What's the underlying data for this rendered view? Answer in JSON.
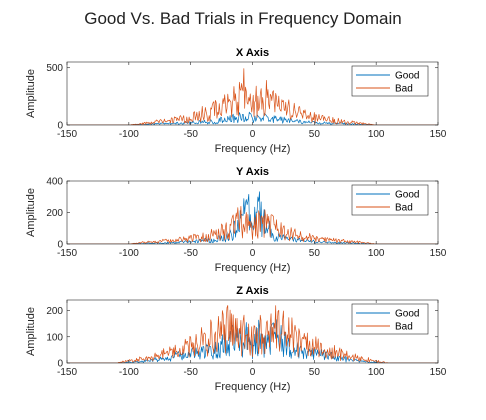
{
  "figure": {
    "title": "Good Vs. Bad Trials in Frequency Domain"
  },
  "colors": {
    "good": "#0072BD",
    "bad": "#D95319",
    "axis": "#262626"
  },
  "chart_data": [
    {
      "type": "line",
      "title": "X Axis",
      "xlabel": "Frequency (Hz)",
      "ylabel": "Amplitude",
      "xlim": [
        -150,
        150
      ],
      "ylim": [
        0,
        550
      ],
      "xticks": [
        -150,
        -100,
        -50,
        0,
        50,
        100,
        150
      ],
      "yticks": [
        0,
        500
      ],
      "grid": false,
      "legend_position": "top-right",
      "series": [
        {
          "name": "Good",
          "color": "#0072BD",
          "x": [
            -150,
            -100,
            -90,
            -80,
            -70,
            -60,
            -50,
            -40,
            -30,
            -20,
            -15,
            -10,
            -5,
            -2,
            0,
            2,
            5,
            10,
            15,
            20,
            30,
            40,
            50,
            60,
            70,
            80,
            90,
            100,
            150
          ],
          "y": [
            0,
            0,
            10,
            15,
            22,
            28,
            35,
            45,
            60,
            85,
            100,
            115,
            95,
            120,
            70,
            120,
            95,
            115,
            100,
            85,
            60,
            45,
            35,
            28,
            22,
            15,
            10,
            0,
            0
          ]
        },
        {
          "name": "Bad",
          "color": "#D95319",
          "x": [
            -150,
            -100,
            -90,
            -80,
            -70,
            -60,
            -50,
            -40,
            -30,
            -20,
            -15,
            -10,
            -7,
            -5,
            -3,
            0,
            3,
            5,
            7,
            10,
            15,
            20,
            30,
            40,
            50,
            60,
            70,
            80,
            90,
            100,
            150
          ],
          "y": [
            0,
            0,
            20,
            40,
            60,
            80,
            110,
            170,
            220,
            280,
            350,
            420,
            500,
            420,
            380,
            250,
            380,
            420,
            500,
            420,
            350,
            280,
            220,
            170,
            110,
            80,
            60,
            40,
            20,
            0,
            0
          ]
        }
      ]
    },
    {
      "type": "line",
      "title": "Y Axis",
      "xlabel": "Frequency (Hz)",
      "ylabel": "Amplitude",
      "xlim": [
        -150,
        150
      ],
      "ylim": [
        0,
        400
      ],
      "xticks": [
        -150,
        -100,
        -50,
        0,
        50,
        100,
        150
      ],
      "yticks": [
        0,
        200,
        400
      ],
      "grid": false,
      "legend_position": "top-right",
      "series": [
        {
          "name": "Good",
          "color": "#0072BD",
          "x": [
            -150,
            -100,
            -90,
            -80,
            -70,
            -60,
            -50,
            -40,
            -30,
            -20,
            -15,
            -10,
            -7,
            -5,
            -3,
            0,
            3,
            5,
            7,
            10,
            15,
            20,
            30,
            40,
            50,
            60,
            70,
            80,
            90,
            100,
            150
          ],
          "y": [
            0,
            0,
            5,
            10,
            12,
            18,
            25,
            35,
            50,
            80,
            150,
            220,
            300,
            380,
            320,
            150,
            320,
            380,
            300,
            220,
            150,
            80,
            50,
            35,
            25,
            18,
            12,
            10,
            5,
            0,
            0
          ]
        },
        {
          "name": "Bad",
          "color": "#D95319",
          "x": [
            -150,
            -100,
            -90,
            -80,
            -70,
            -60,
            -50,
            -40,
            -30,
            -20,
            -15,
            -10,
            -5,
            0,
            5,
            10,
            15,
            20,
            30,
            40,
            50,
            60,
            70,
            80,
            90,
            100,
            150
          ],
          "y": [
            0,
            0,
            15,
            25,
            35,
            45,
            60,
            80,
            110,
            150,
            200,
            250,
            220,
            180,
            220,
            250,
            200,
            150,
            110,
            80,
            60,
            45,
            35,
            25,
            15,
            0,
            0
          ]
        }
      ]
    },
    {
      "type": "line",
      "title": "Z Axis",
      "xlabel": "Frequency (Hz)",
      "ylabel": "Amplitude",
      "xlim": [
        -150,
        150
      ],
      "ylim": [
        0,
        240
      ],
      "xticks": [
        -150,
        -100,
        -50,
        0,
        50,
        100,
        150
      ],
      "yticks": [
        0,
        100,
        200
      ],
      "grid": false,
      "legend_position": "top-right",
      "series": [
        {
          "name": "Good",
          "color": "#0072BD",
          "x": [
            -150,
            -110,
            -100,
            -90,
            -80,
            -70,
            -60,
            -50,
            -40,
            -30,
            -25,
            -20,
            -15,
            -10,
            -5,
            0,
            5,
            10,
            15,
            20,
            25,
            30,
            40,
            50,
            60,
            70,
            80,
            90,
            100,
            110,
            150
          ],
          "y": [
            0,
            0,
            5,
            10,
            20,
            30,
            50,
            60,
            70,
            90,
            130,
            170,
            150,
            120,
            170,
            100,
            170,
            120,
            150,
            170,
            130,
            90,
            70,
            60,
            50,
            30,
            20,
            10,
            5,
            0,
            0
          ]
        },
        {
          "name": "Bad",
          "color": "#D95319",
          "x": [
            -150,
            -110,
            -100,
            -90,
            -80,
            -70,
            -60,
            -50,
            -40,
            -30,
            -25,
            -20,
            -15,
            -10,
            -5,
            0,
            5,
            10,
            15,
            20,
            25,
            30,
            40,
            50,
            60,
            70,
            80,
            90,
            100,
            110,
            150
          ],
          "y": [
            0,
            0,
            15,
            25,
            40,
            60,
            80,
            110,
            140,
            180,
            200,
            230,
            190,
            160,
            210,
            140,
            210,
            160,
            190,
            230,
            200,
            180,
            140,
            110,
            80,
            60,
            40,
            25,
            15,
            0,
            0
          ]
        }
      ]
    }
  ]
}
